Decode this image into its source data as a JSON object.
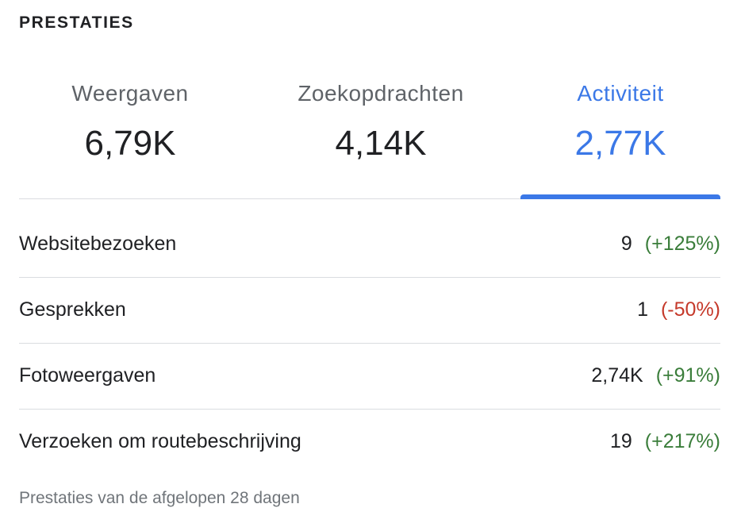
{
  "section_title": "PRESTATIES",
  "tabs": [
    {
      "label": "Weergaven",
      "value": "6,79K",
      "active": false
    },
    {
      "label": "Zoekopdrachten",
      "value": "4,14K",
      "active": false
    },
    {
      "label": "Activiteit",
      "value": "2,77K",
      "active": true
    }
  ],
  "metrics": [
    {
      "label": "Websitebezoeken",
      "value": "9",
      "change": "(+125%)",
      "trend": "up"
    },
    {
      "label": "Gesprekken",
      "value": "1",
      "change": "(-50%)",
      "trend": "down"
    },
    {
      "label": "Fotoweergaven",
      "value": "2,74K",
      "change": "(+91%)",
      "trend": "up"
    },
    {
      "label": "Verzoeken om routebeschrijving",
      "value": "19",
      "change": "(+217%)",
      "trend": "up"
    }
  ],
  "footer": "Prestaties van de afgelopen 28 dagen",
  "colors": {
    "accent": "#3b78e7",
    "positive": "#3a7d3a",
    "negative": "#c5392a",
    "divider": "#dadce0",
    "muted_text": "#5f6368"
  }
}
